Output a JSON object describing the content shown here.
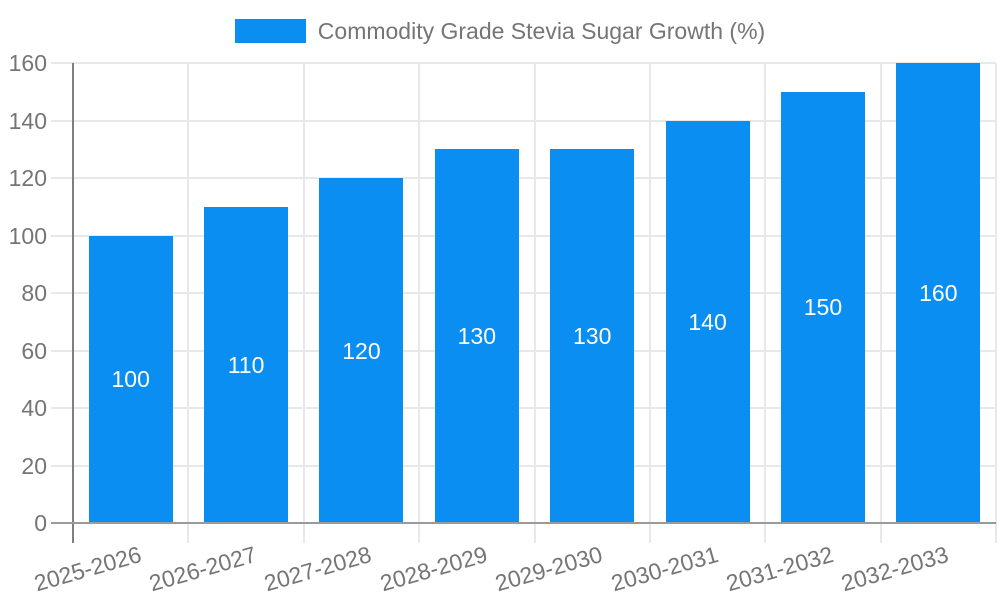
{
  "legend": {
    "label": "Commodity Grade Stevia Sugar Growth (%)"
  },
  "colors": {
    "bar": "#0b8ef2",
    "grid": "#e8e8e8",
    "y_axis_line": "#7f7f7f",
    "x_axis_line": "#9a9a9a",
    "tick_text": "#757575",
    "legend_text": "#757575",
    "bar_label_text": "#ffffff"
  },
  "chart_data": {
    "type": "bar",
    "title": "Commodity Grade Stevia Sugar Growth (%)",
    "categories": [
      "2025-2026",
      "2026-2027",
      "2027-2028",
      "2028-2029",
      "2029-2030",
      "2030-2031",
      "2031-2032",
      "2032-2033"
    ],
    "values": [
      100,
      110,
      120,
      130,
      130,
      140,
      150,
      160
    ],
    "xlabel": "",
    "ylabel": "",
    "ylim": [
      0,
      160
    ],
    "yticks": [
      0,
      20,
      40,
      60,
      80,
      100,
      120,
      140,
      160
    ],
    "grid": true,
    "legend_position": "top",
    "bar_value_labels": "inside-center"
  }
}
